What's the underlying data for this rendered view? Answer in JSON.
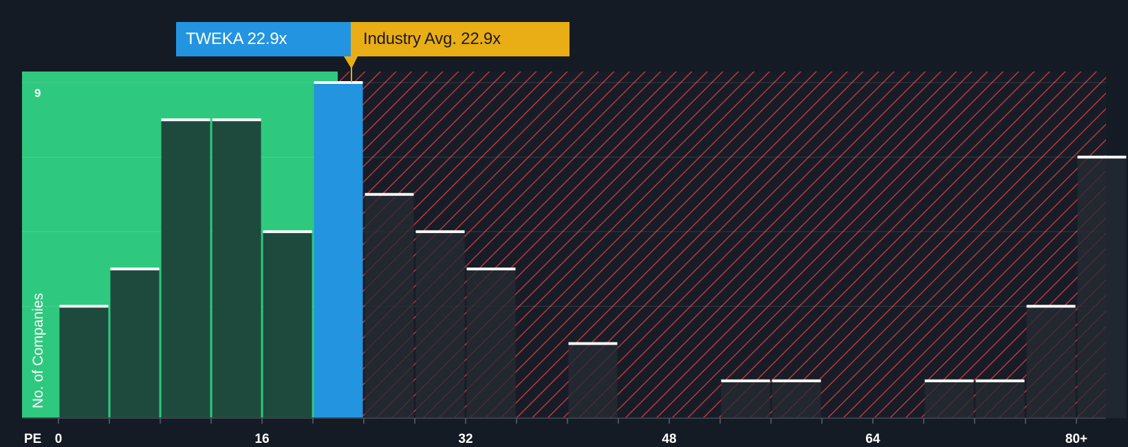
{
  "company_label": "TWEKA 22.9x",
  "industry_label": "Industry Avg. 22.9x",
  "colors": {
    "background": "#151b24",
    "green_zone": "#2ec97e",
    "green_bar": "#1d4a3d",
    "company_bar": "#2394e0",
    "red_hatch": "#b83a43",
    "dark_bar": "#252a33",
    "cap": "#ffffff"
  },
  "chart_data": {
    "type": "bar",
    "title": "",
    "xlabel": "PE",
    "ylabel": "No. of Companies",
    "x_ticks": [
      "0",
      "16",
      "32",
      "48",
      "64",
      "80+"
    ],
    "y_ticks": [
      "9"
    ],
    "xlim": [
      0,
      82
    ],
    "ylim": [
      0,
      9
    ],
    "bin_width": 4,
    "company_value": 22.9,
    "industry_avg": 22.9,
    "bins": [
      {
        "start": 0,
        "count": 3,
        "zone": "below"
      },
      {
        "start": 4,
        "count": 4,
        "zone": "below"
      },
      {
        "start": 8,
        "count": 8,
        "zone": "below"
      },
      {
        "start": 12,
        "count": 8,
        "zone": "below"
      },
      {
        "start": 16,
        "count": 5,
        "zone": "below"
      },
      {
        "start": 20,
        "count": 9,
        "zone": "company"
      },
      {
        "start": 24,
        "count": 6,
        "zone": "above"
      },
      {
        "start": 28,
        "count": 5,
        "zone": "above"
      },
      {
        "start": 32,
        "count": 4,
        "zone": "above"
      },
      {
        "start": 40,
        "count": 2,
        "zone": "above"
      },
      {
        "start": 52,
        "count": 1,
        "zone": "above"
      },
      {
        "start": 56,
        "count": 1,
        "zone": "above"
      },
      {
        "start": 68,
        "count": 1,
        "zone": "above"
      },
      {
        "start": 72,
        "count": 1,
        "zone": "above"
      },
      {
        "start": 76,
        "count": 3,
        "zone": "above"
      },
      {
        "start": 80,
        "count": 7,
        "zone": "above"
      }
    ]
  }
}
